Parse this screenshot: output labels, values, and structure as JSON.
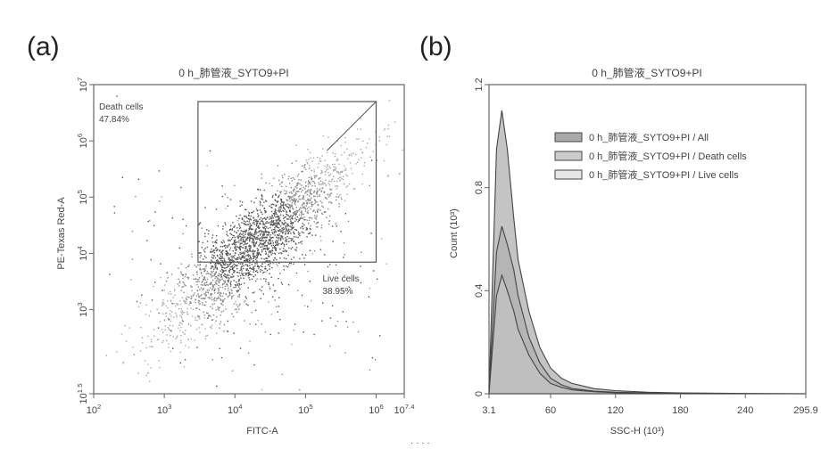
{
  "chart_data": [
    {
      "panel_label": "(a)",
      "type": "scatter",
      "title": "0 h_肺管液_SYTO9+PI",
      "xlabel": "FITC-A",
      "ylabel": "PE-Texas Red-A",
      "x_scale": "log",
      "y_scale": "log",
      "xlim": [
        100,
        2500000
      ],
      "ylim": [
        32,
        10000000
      ],
      "x_tick_labels": [
        "10^2",
        "10^3",
        "10^4",
        "10^5",
        "10^6",
        "10^7.4"
      ],
      "x_tick_values": [
        100,
        1000,
        10000,
        100000,
        1000000,
        2500000
      ],
      "y_tick_labels": [
        "10^1.5",
        "10^3",
        "10^4",
        "10^5",
        "10^6",
        "10^7"
      ],
      "y_tick_values": [
        32,
        1000,
        10000,
        100000,
        1000000,
        10000000
      ],
      "gates": [
        {
          "name": "Death cells",
          "percent": "47.84%",
          "x_range": [
            3000,
            1000000
          ],
          "y_range": [
            7000,
            5000000
          ]
        },
        {
          "name": "Live cells",
          "percent": "38.95%",
          "position": "bottom-right"
        }
      ],
      "density": {
        "center_log10": [
          4.3,
          4.2
        ],
        "trend": "diagonal",
        "spread": "wide"
      }
    },
    {
      "panel_label": "(b)",
      "type": "area",
      "title": "0 h_肺管液_SYTO9+PI",
      "xlabel": "SSC-H (10³)",
      "ylabel": "Count (10³)",
      "xlim": [
        3.1,
        295.9
      ],
      "ylim": [
        0,
        1.2
      ],
      "x_ticks": [
        "3.1",
        "60",
        "120",
        "180",
        "240",
        "295.9"
      ],
      "y_ticks": [
        "0",
        "0.4",
        "0.8",
        "1.2"
      ],
      "legend": {
        "position": "top-right",
        "entries": [
          "0 h_肺管液_SYTO9+PI / All",
          "0 h_肺管液_SYTO9+PI / Death cells",
          "0 h_肺管液_SYTO9+PI / Live cells"
        ]
      },
      "x": [
        3.1,
        10,
        15,
        20,
        26,
        30,
        40,
        50,
        60,
        70,
        80,
        100,
        120,
        150,
        180,
        240,
        295.9
      ],
      "series": [
        {
          "name": "0 h_肺管液_SYTO9+PI / All",
          "values": [
            0,
            0.95,
            1.1,
            0.95,
            0.68,
            0.52,
            0.32,
            0.18,
            0.1,
            0.06,
            0.04,
            0.02,
            0.012,
            0.006,
            0.003,
            0.001,
            0
          ]
        },
        {
          "name": "0 h_肺管液_SYTO9+PI / Death cells",
          "values": [
            0,
            0.55,
            0.65,
            0.58,
            0.48,
            0.38,
            0.22,
            0.12,
            0.06,
            0.035,
            0.02,
            0.01,
            0.006,
            0.003,
            0.001,
            0,
            0
          ]
        },
        {
          "name": "0 h_肺管液_SYTO9+PI / Live cells",
          "values": [
            0,
            0.38,
            0.46,
            0.4,
            0.32,
            0.25,
            0.15,
            0.08,
            0.04,
            0.025,
            0.015,
            0.008,
            0.004,
            0.002,
            0.001,
            0,
            0
          ]
        }
      ],
      "colors": [
        "#555555",
        "#9a9a9a",
        "#d0d0d0"
      ]
    }
  ],
  "footnote": "· · · ·"
}
